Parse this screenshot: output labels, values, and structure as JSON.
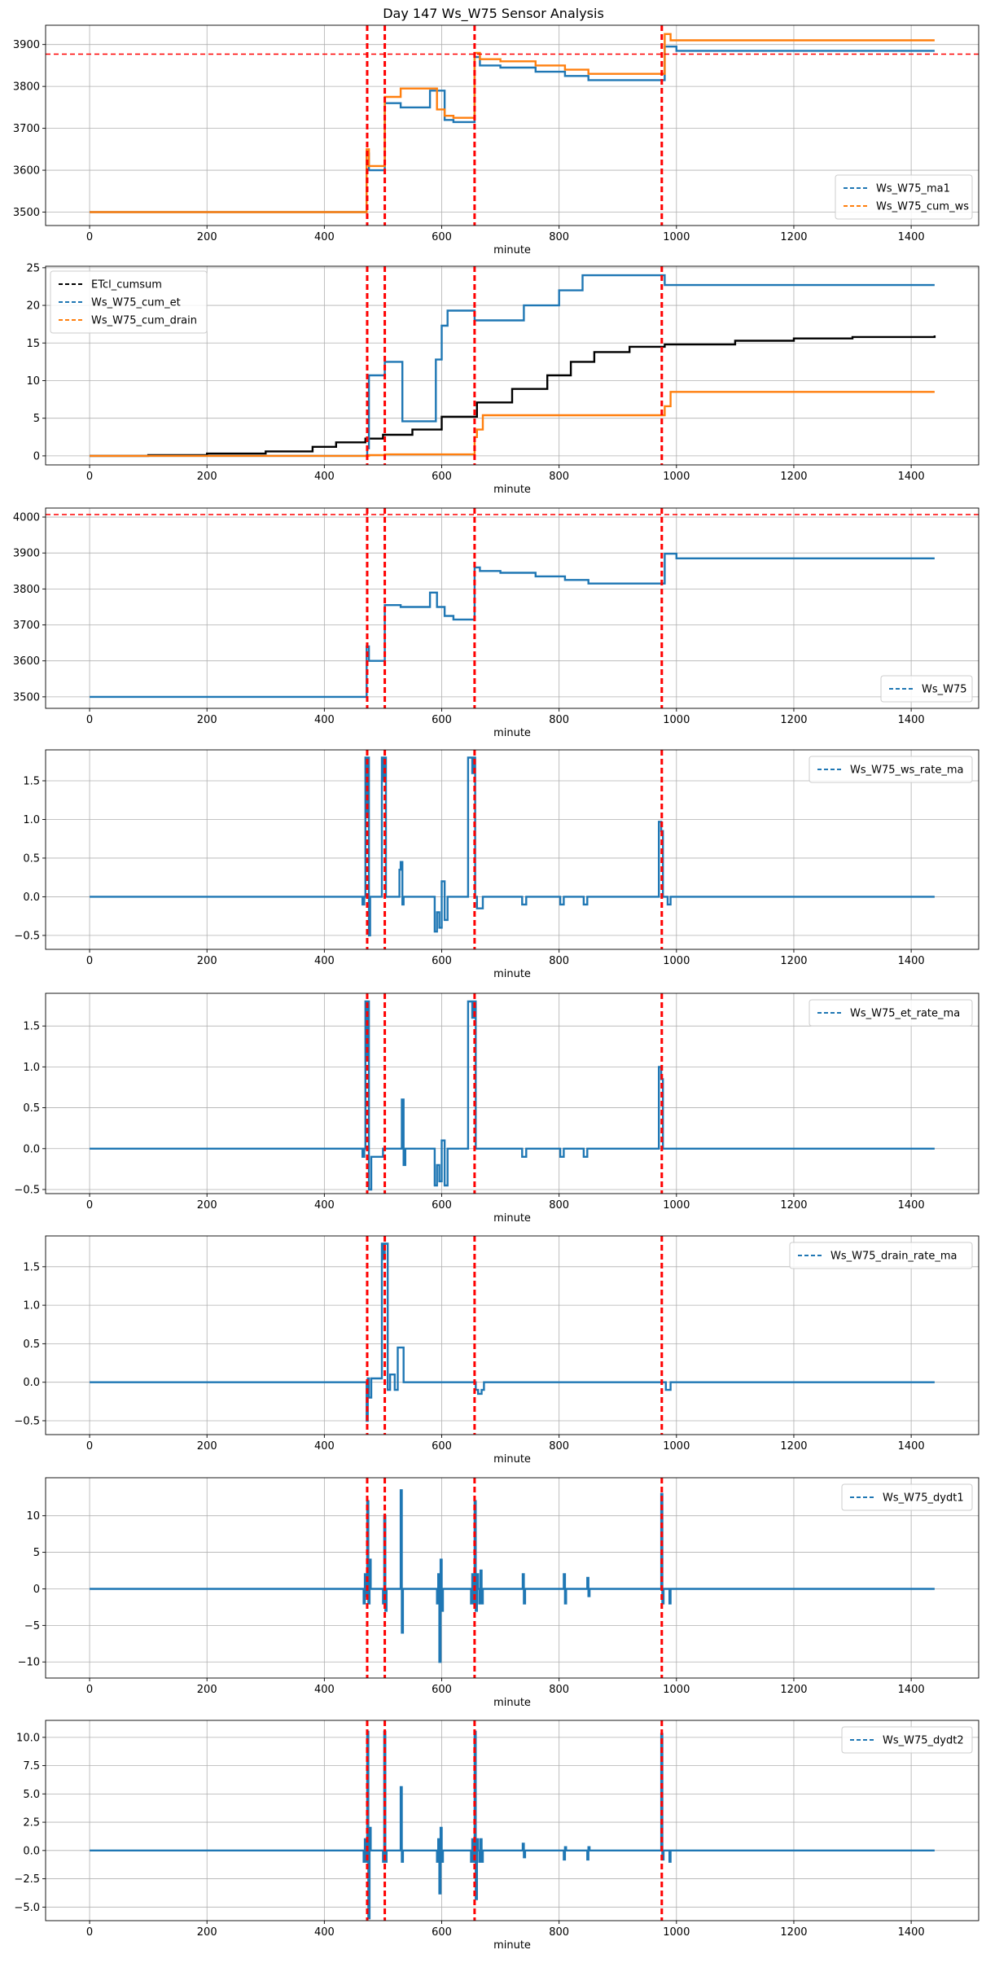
{
  "title": "Day 147 Ws_W75 Sensor Analysis",
  "colors": {
    "blue": "#1f77b4",
    "orange": "#ff7f0e",
    "black": "#000000",
    "red": "#ff0000",
    "grid": "#b0b0b0"
  },
  "chart_data": [
    {
      "type": "line",
      "xlabel": "minute",
      "xlim": [
        -75,
        1515
      ],
      "ylim": [
        3468,
        3946
      ],
      "xticks": [
        0,
        200,
        400,
        600,
        800,
        1000,
        1200,
        1400
      ],
      "yticks": [
        3500,
        3600,
        3700,
        3800,
        3900
      ],
      "legend": "lower-right",
      "vlines": [
        473,
        503,
        656,
        975
      ],
      "hline": 3877,
      "series": [
        {
          "name": "Ws_W75_ma1",
          "color": "#1f77b4",
          "x": [
            0,
            470,
            472,
            476,
            500,
            503,
            530,
            580,
            592,
            605,
            620,
            650,
            656,
            665,
            700,
            760,
            810,
            850,
            975,
            980,
            1000,
            1440
          ],
          "y": [
            3500,
            3500,
            3640,
            3600,
            3600,
            3760,
            3750,
            3790,
            3790,
            3720,
            3715,
            3715,
            3870,
            3850,
            3845,
            3835,
            3825,
            3815,
            3815,
            3895,
            3885,
            3885
          ]
        },
        {
          "name": "Ws_W75_cum_ws",
          "color": "#ff7f0e",
          "x": [
            0,
            470,
            472,
            476,
            500,
            503,
            530,
            580,
            592,
            605,
            620,
            650,
            656,
            665,
            700,
            760,
            810,
            850,
            975,
            980,
            990,
            1440
          ],
          "y": [
            3500,
            3500,
            3650,
            3610,
            3610,
            3775,
            3795,
            3795,
            3745,
            3730,
            3725,
            3725,
            3880,
            3865,
            3860,
            3850,
            3840,
            3830,
            3830,
            3925,
            3910,
            3910
          ]
        }
      ]
    },
    {
      "type": "line",
      "xlabel": "minute",
      "xlim": [
        -75,
        1515
      ],
      "ylim": [
        -1.2,
        25.2
      ],
      "xticks": [
        0,
        200,
        400,
        600,
        800,
        1000,
        1200,
        1400
      ],
      "yticks": [
        0,
        5,
        10,
        15,
        20,
        25
      ],
      "legend": "top-left",
      "vlines": [
        473,
        503,
        656,
        975
      ],
      "series": [
        {
          "name": "ETcl_cumsum",
          "color": "#000000",
          "x": [
            0,
            100,
            200,
            300,
            380,
            420,
            470,
            500,
            550,
            600,
            660,
            720,
            780,
            820,
            860,
            920,
            980,
            1100,
            1200,
            1300,
            1440
          ],
          "y": [
            0,
            0.1,
            0.3,
            0.6,
            1.2,
            1.8,
            2.3,
            2.8,
            3.5,
            5.2,
            7.1,
            8.9,
            10.7,
            12.5,
            13.8,
            14.5,
            14.8,
            15.3,
            15.6,
            15.8,
            16.0
          ]
        },
        {
          "name": "Ws_W75_cum_et",
          "color": "#1f77b4",
          "x": [
            0,
            470,
            473,
            476,
            500,
            503,
            530,
            533,
            580,
            590,
            600,
            610,
            655,
            656,
            700,
            740,
            800,
            840,
            975,
            980,
            1440
          ],
          "y": [
            0,
            0,
            1,
            10.7,
            10.7,
            12.5,
            12.5,
            4.6,
            4.6,
            12.8,
            17.3,
            19.3,
            19.3,
            18,
            18,
            20,
            22,
            24,
            24,
            22.7,
            22.7
          ]
        },
        {
          "name": "Ws_W75_cum_drain",
          "color": "#ff7f0e",
          "x": [
            0,
            470,
            473,
            476,
            500,
            503,
            650,
            656,
            660,
            670,
            720,
            975,
            980,
            990,
            1440
          ],
          "y": [
            0,
            0,
            0,
            0.1,
            0.1,
            0.2,
            0.2,
            2.5,
            3.5,
            5.4,
            5.4,
            5.4,
            6.6,
            8.5,
            8.5
          ]
        }
      ]
    },
    {
      "type": "line",
      "xlabel": "minute",
      "xlim": [
        -75,
        1515
      ],
      "ylim": [
        3468,
        4025
      ],
      "xticks": [
        0,
        200,
        400,
        600,
        800,
        1000,
        1200,
        1400
      ],
      "yticks": [
        3500,
        3600,
        3700,
        3800,
        3900,
        4000
      ],
      "legend": "lower-right",
      "vlines": [
        473,
        503,
        656,
        975
      ],
      "hline": 4007,
      "series": [
        {
          "name": "Ws_W75",
          "color": "#1f77b4",
          "x": [
            0,
            470,
            472,
            476,
            500,
            503,
            530,
            580,
            592,
            605,
            620,
            650,
            656,
            665,
            700,
            760,
            810,
            850,
            975,
            980,
            1000,
            1440
          ],
          "y": [
            3500,
            3500,
            3640,
            3600,
            3600,
            3755,
            3750,
            3790,
            3750,
            3725,
            3715,
            3715,
            3860,
            3850,
            3845,
            3835,
            3825,
            3815,
            3815,
            3898,
            3885,
            3885
          ]
        }
      ]
    },
    {
      "type": "line",
      "xlabel": "minute",
      "xlim": [
        -75,
        1515
      ],
      "ylim": [
        -0.68,
        1.9
      ],
      "xticks": [
        0,
        200,
        400,
        600,
        800,
        1000,
        1200,
        1400
      ],
      "yticks": [
        -0.5,
        0.0,
        0.5,
        1.0,
        1.5
      ],
      "legend": "top-right",
      "vlines": [
        473,
        503,
        656,
        975
      ],
      "series": [
        {
          "name": "Ws_W75_ws_rate_ma",
          "color": "#1f77b4",
          "x": [
            0,
            463,
            465,
            468,
            470,
            472,
            474,
            476,
            478,
            495,
            498,
            501,
            503,
            505,
            525,
            528,
            530,
            533,
            535,
            585,
            588,
            592,
            596,
            600,
            605,
            610,
            640,
            645,
            652,
            655,
            657,
            660,
            670,
            735,
            737,
            741,
            744,
            800,
            802,
            806,
            808,
            840,
            842,
            846,
            848,
            968,
            970,
            974,
            977,
            985,
            990,
            1440
          ],
          "y": [
            0,
            0,
            -0.1,
            0,
            1.8,
            1.1,
            1.8,
            -0.5,
            0,
            0,
            1.8,
            1.5,
            1.8,
            0,
            0,
            0.35,
            0.45,
            -0.1,
            0,
            0,
            -0.45,
            -0.2,
            -0.4,
            0.2,
            -0.3,
            0,
            0,
            1.8,
            1.6,
            1.8,
            0,
            -0.15,
            0,
            0,
            -0.1,
            -0.1,
            0,
            0,
            -0.1,
            -0.1,
            0,
            0,
            -0.1,
            -0.1,
            0,
            0,
            0.97,
            0.85,
            0,
            -0.1,
            0,
            0
          ]
        }
      ]
    },
    {
      "type": "line",
      "xlabel": "minute",
      "xlim": [
        -75,
        1515
      ],
      "ylim": [
        -0.55,
        1.9
      ],
      "xticks": [
        0,
        200,
        400,
        600,
        800,
        1000,
        1200,
        1400
      ],
      "yticks": [
        -0.5,
        0.0,
        0.5,
        1.0,
        1.5
      ],
      "legend": "top-right",
      "vlines": [
        473,
        503,
        656,
        975
      ],
      "series": [
        {
          "name": "Ws_W75_et_rate_ma",
          "color": "#1f77b4",
          "x": [
            0,
            463,
            465,
            468,
            470,
            472,
            474,
            476,
            480,
            500,
            505,
            530,
            532,
            535,
            538,
            585,
            588,
            592,
            596,
            600,
            605,
            610,
            640,
            645,
            652,
            655,
            658,
            735,
            737,
            741,
            744,
            800,
            802,
            806,
            808,
            840,
            842,
            846,
            848,
            968,
            970,
            974,
            977,
            1440
          ],
          "y": [
            0,
            0,
            -0.1,
            0,
            1.8,
            1.1,
            1.8,
            -0.5,
            -0.1,
            0,
            0,
            0,
            0.6,
            -0.2,
            0,
            0,
            -0.45,
            -0.2,
            -0.4,
            0.1,
            -0.45,
            0,
            0,
            1.8,
            1.6,
            1.8,
            0,
            0,
            -0.1,
            -0.1,
            0,
            0,
            -0.1,
            -0.1,
            0,
            0,
            -0.1,
            -0.1,
            0,
            0,
            1.0,
            0.85,
            0,
            0
          ]
        }
      ]
    },
    {
      "type": "line",
      "xlabel": "minute",
      "xlim": [
        -75,
        1515
      ],
      "ylim": [
        -0.68,
        1.9
      ],
      "xticks": [
        0,
        200,
        400,
        600,
        800,
        1000,
        1200,
        1400
      ],
      "yticks": [
        -0.5,
        0.0,
        0.5,
        1.0,
        1.5
      ],
      "legend": "top-right",
      "vlines": [
        473,
        503,
        656,
        975
      ],
      "series": [
        {
          "name": "Ws_W75_drain_rate_ma",
          "color": "#1f77b4",
          "x": [
            0,
            470,
            472,
            474,
            476,
            480,
            495,
            498,
            501,
            503,
            508,
            512,
            520,
            525,
            528,
            535,
            655,
            658,
            662,
            668,
            672,
            978,
            982,
            986,
            990,
            1440
          ],
          "y": [
            0,
            0,
            -0.5,
            0.05,
            -0.2,
            0.05,
            0.05,
            1.8,
            1.6,
            1.8,
            -0.1,
            0.1,
            -0.1,
            0.45,
            0.45,
            0,
            0,
            -0.1,
            -0.15,
            -0.1,
            0,
            0,
            -0.1,
            -0.1,
            0,
            0
          ]
        }
      ]
    },
    {
      "type": "line",
      "xlabel": "minute",
      "xlim": [
        -75,
        1515
      ],
      "ylim": [
        -12.2,
        15.2
      ],
      "xticks": [
        0,
        200,
        400,
        600,
        800,
        1000,
        1200,
        1400
      ],
      "yticks": [
        -10,
        -5,
        0,
        5,
        10
      ],
      "legend": "top-right",
      "vlines": [
        473,
        503,
        656,
        975
      ],
      "series": [
        {
          "name": "Ws_W75_dydt1",
          "color": "#1f77b4",
          "x": [
            0,
            465,
            467,
            469,
            471,
            473,
            475,
            477,
            479,
            498,
            500,
            502,
            504,
            506,
            528,
            530,
            532,
            534,
            590,
            592,
            594,
            596,
            598,
            600,
            602,
            648,
            650,
            652,
            654,
            656,
            658,
            660,
            662,
            664,
            666,
            668,
            670,
            736,
            738,
            740,
            742,
            806,
            808,
            810,
            812,
            846,
            848,
            850,
            852,
            972,
            974,
            976,
            978,
            986,
            988,
            990,
            1440
          ],
          "y": [
            0,
            0,
            -2,
            2,
            -1,
            12,
            -2,
            4,
            0,
            0,
            -2,
            10,
            -3,
            0,
            0,
            13.5,
            -6,
            0,
            0,
            -2,
            2,
            -10,
            4,
            -3,
            0,
            0,
            -2,
            2,
            -2,
            12,
            -3,
            2,
            0,
            -2,
            2.5,
            -2,
            0,
            0,
            2,
            -2,
            0,
            0,
            2,
            -2,
            0,
            0,
            1.5,
            -1,
            0,
            0,
            13,
            -2,
            0,
            0,
            -2,
            0,
            0
          ]
        }
      ]
    },
    {
      "type": "line",
      "xlabel": "minute",
      "xlim": [
        -75,
        1515
      ],
      "ylim": [
        -6.2,
        11.5
      ],
      "xticks": [
        0,
        200,
        400,
        600,
        800,
        1000,
        1200,
        1400
      ],
      "yticks": [
        -5.0,
        -2.5,
        0.0,
        2.5,
        5.0,
        7.5,
        10.0
      ],
      "legend": "top-right",
      "vlines": [
        473,
        503,
        656,
        975
      ],
      "series": [
        {
          "name": "Ws_W75_dydt2",
          "color": "#1f77b4",
          "x": [
            0,
            465,
            467,
            469,
            471,
            473,
            475,
            477,
            479,
            498,
            500,
            502,
            504,
            506,
            528,
            530,
            532,
            534,
            590,
            592,
            594,
            596,
            598,
            600,
            602,
            648,
            650,
            652,
            654,
            656,
            658,
            660,
            662,
            664,
            666,
            668,
            670,
            736,
            738,
            740,
            742,
            806,
            808,
            810,
            812,
            846,
            848,
            850,
            852,
            972,
            974,
            976,
            978,
            986,
            988,
            990,
            1440
          ],
          "y": [
            0,
            0,
            -1,
            1,
            -1,
            10.5,
            -6,
            2,
            0,
            0,
            -1,
            10.5,
            -1,
            0,
            0,
            5.6,
            -1,
            0,
            0,
            -1,
            1,
            -3.8,
            2,
            -1,
            0,
            0,
            -1,
            1,
            -1,
            10.5,
            -4.3,
            1,
            0,
            -1,
            1,
            -1,
            0,
            0,
            0.6,
            -0.6,
            0,
            0,
            -0.8,
            0.3,
            0,
            0,
            -0.8,
            0.3,
            0,
            0,
            10.3,
            -0.8,
            0,
            0,
            -1,
            0,
            0
          ]
        }
      ]
    }
  ]
}
